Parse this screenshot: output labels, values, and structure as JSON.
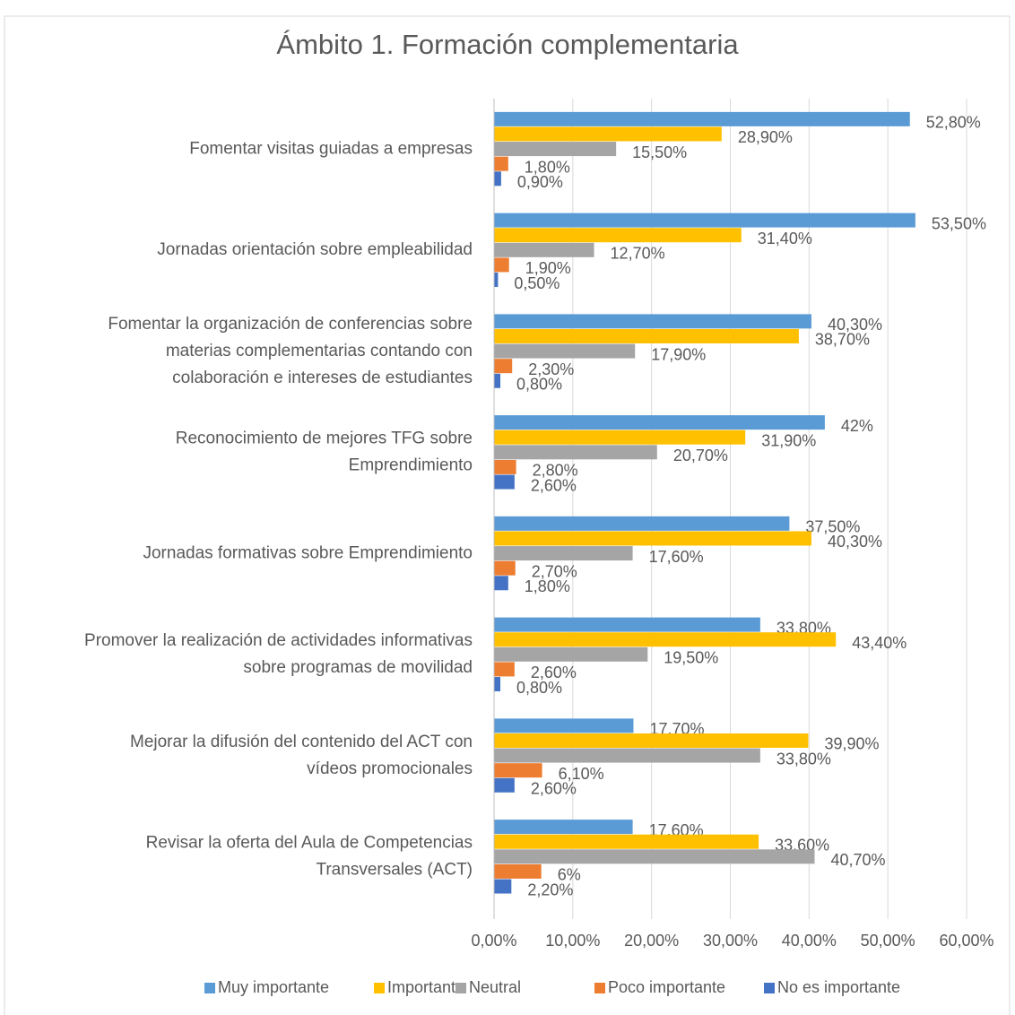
{
  "chart_data": {
    "type": "hbar",
    "title": "Ámbito 1. Formación complementaria",
    "categories": [
      "Fomentar visitas guiadas a empresas",
      "Jornadas orientación sobre empleabilidad",
      "Fomentar la organización de conferencias sobre\nmaterias complementarias contando con\ncolaboración e intereses de estudiantes",
      "Reconocimiento de mejores TFG sobre\nEmprendimiento",
      "Jornadas formativas sobre Emprendimiento",
      "Promover la realización de actividades informativas\nsobre programas de movilidad",
      "Mejorar la difusión del contenido del ACT con\nvídeos promocionales",
      "Revisar la oferta del Aula de Competencias\nTransversales (ACT)"
    ],
    "series": [
      {
        "name": "Muy importante",
        "color": "#5b9bd5",
        "values": [
          52.8,
          53.5,
          40.3,
          42,
          37.5,
          33.8,
          17.7,
          17.6
        ],
        "value_labels": [
          "52,80%",
          "53,50%",
          "40,30%",
          "42%",
          "37,50%",
          "33,80%",
          "17,70%",
          "17,60%"
        ]
      },
      {
        "name": "Importante",
        "color": "#ffc000",
        "values": [
          28.9,
          31.4,
          38.7,
          31.9,
          40.3,
          43.4,
          39.9,
          33.6
        ],
        "value_labels": [
          "28,90%",
          "31,40%",
          "38,70%",
          "31,90%",
          "40,30%",
          "43,40%",
          "39,90%",
          "33,60%"
        ]
      },
      {
        "name": "Neutral",
        "color": "#a5a5a5",
        "values": [
          15.5,
          12.7,
          17.9,
          20.7,
          17.6,
          19.5,
          33.8,
          40.7
        ],
        "value_labels": [
          "15,50%",
          "12,70%",
          "17,90%",
          "20,70%",
          "17,60%",
          "19,50%",
          "33,80%",
          "40,70%"
        ]
      },
      {
        "name": "Poco importante",
        "color": "#ed7d31",
        "values": [
          1.8,
          1.9,
          2.3,
          2.8,
          2.7,
          2.6,
          6.1,
          6
        ],
        "value_labels": [
          "1,80%",
          "1,90%",
          "2,30%",
          "2,80%",
          "2,70%",
          "2,60%",
          "6,10%",
          "6%"
        ]
      },
      {
        "name": "No es importante",
        "color": "#4472c4",
        "values": [
          0.9,
          0.5,
          0.8,
          2.6,
          1.8,
          0.8,
          2.6,
          2.2
        ],
        "value_labels": [
          "0,90%",
          "0,50%",
          "0,80%",
          "2,60%",
          "1,80%",
          "0,80%",
          "2,60%",
          "2,20%"
        ]
      }
    ],
    "xlim": [
      0,
      60
    ],
    "xticks": [
      {
        "value": 0,
        "label": "0,00%"
      },
      {
        "value": 10,
        "label": "10,00%"
      },
      {
        "value": 20,
        "label": "20,00%"
      },
      {
        "value": 30,
        "label": "30,00%"
      },
      {
        "value": 40,
        "label": "40,00%"
      },
      {
        "value": 50,
        "label": "50,00%"
      },
      {
        "value": 60,
        "label": "60,00%"
      }
    ],
    "grid": true,
    "legend": "bottom"
  }
}
